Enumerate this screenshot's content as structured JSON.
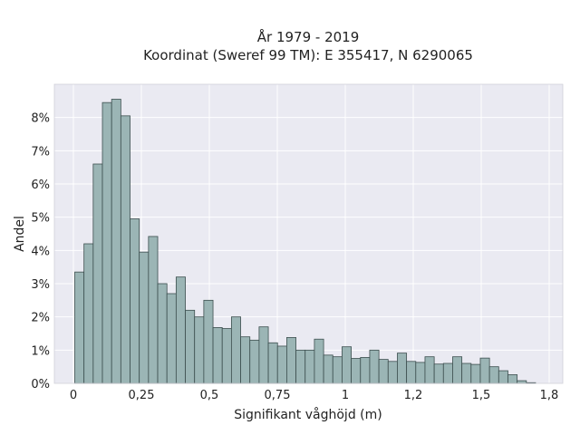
{
  "chart_data": {
    "type": "bar",
    "title_lines": [
      "År 1979 - 2019",
      "Koordinat (Sweref 99 TM): E 355417, N 6290065"
    ],
    "xlabel": "Signifikant våghöjd (m)",
    "ylabel": "Andel",
    "xlim": [
      -0.07,
      1.8
    ],
    "ylim": [
      0,
      9.0
    ],
    "x_ticks": [
      0,
      0.25,
      0.5,
      0.75,
      1,
      1.25,
      1.5,
      1.75
    ],
    "x_tick_labels": [
      "0",
      "0,25",
      "0,5",
      "0,75",
      "1",
      "1,2",
      "1,5",
      "1,8"
    ],
    "y_ticks": [
      0,
      1,
      2,
      3,
      4,
      5,
      6,
      7,
      8
    ],
    "y_tick_labels": [
      "0%",
      "1%",
      "2%",
      "3%",
      "4%",
      "5%",
      "6%",
      "7%",
      "8%"
    ],
    "grid": true,
    "bin_width": 0.0339,
    "bin_start": 0.005,
    "values": [
      3.35,
      4.2,
      6.6,
      8.45,
      8.55,
      8.05,
      4.95,
      3.95,
      4.42,
      3.0,
      2.7,
      3.2,
      2.2,
      2.0,
      2.5,
      1.68,
      1.65,
      2.0,
      1.4,
      1.3,
      1.7,
      1.22,
      1.12,
      1.38,
      1.0,
      1.0,
      1.33,
      0.85,
      0.8,
      1.1,
      0.75,
      0.78,
      1.0,
      0.72,
      0.66,
      0.91,
      0.66,
      0.63,
      0.8,
      0.58,
      0.6,
      0.8,
      0.6,
      0.57,
      0.76,
      0.5,
      0.38,
      0.26,
      0.08,
      0.02
    ]
  },
  "colors": {
    "plot_bg": "#eaeaf2",
    "grid": "#ffffff",
    "bar_fill": "#9bb5b5",
    "bar_edge": "#3d4f4f"
  }
}
